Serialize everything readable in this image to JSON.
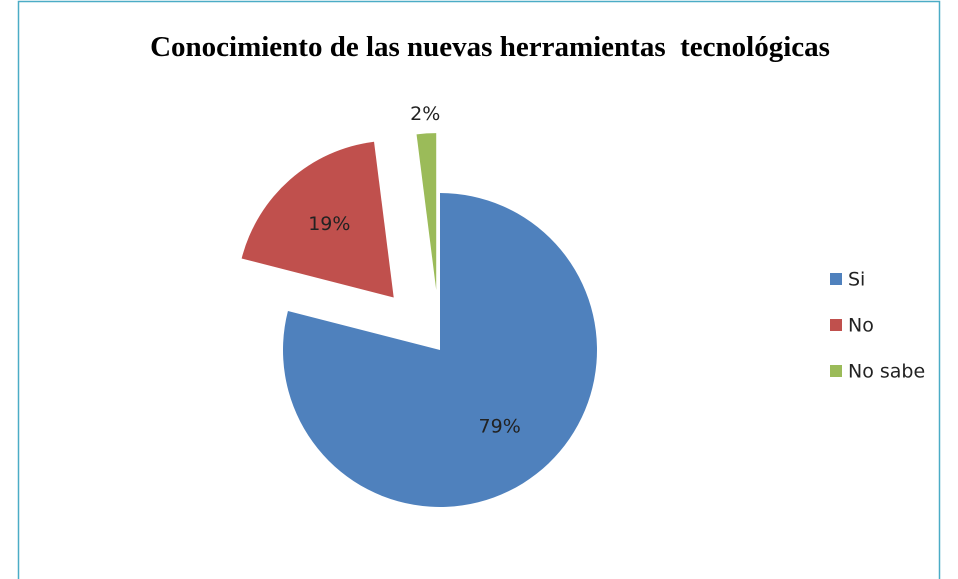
{
  "chart_data": {
    "type": "pie",
    "title": "Conocimiento de las nuevas herramientas  tecnológicas",
    "categories": [
      "Si",
      "No",
      "No sabe"
    ],
    "values": [
      79,
      19,
      2
    ],
    "value_labels": [
      "79%",
      "19%",
      "2%"
    ],
    "colors": [
      "#4f81bd",
      "#c0504d",
      "#9bbb59"
    ],
    "legend": "right"
  }
}
